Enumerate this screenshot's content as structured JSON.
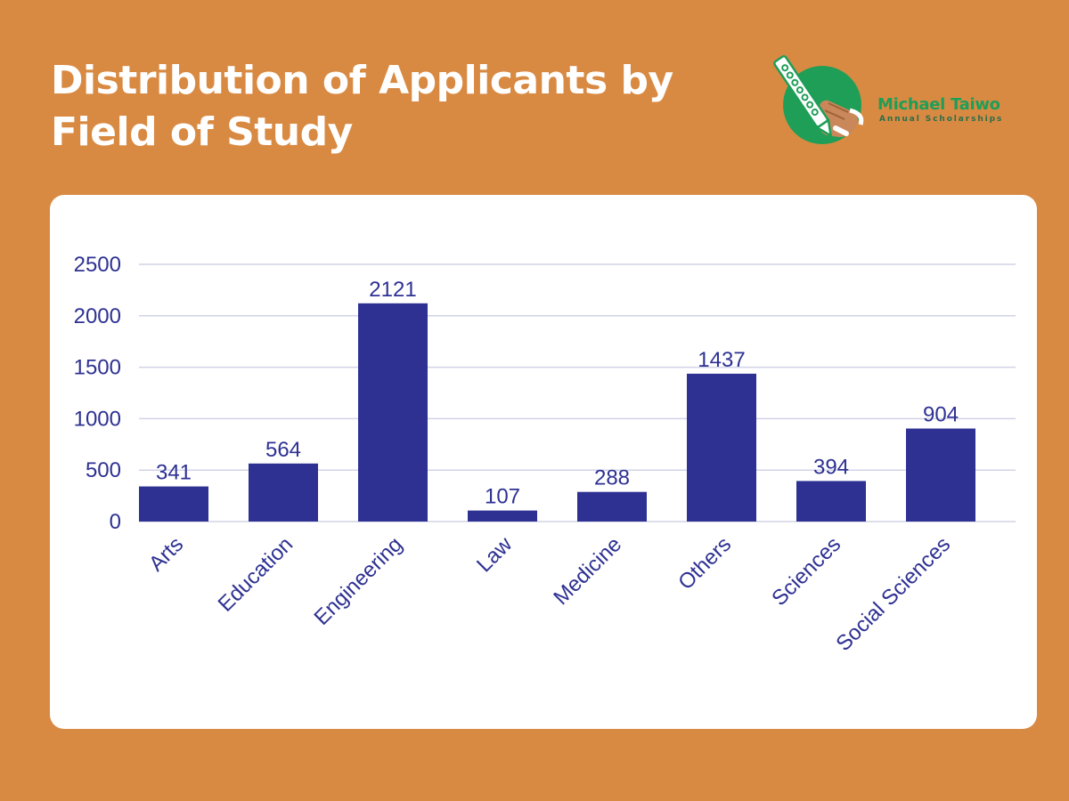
{
  "header": {
    "title_line1": "Distribution of Applicants by",
    "title_line2": "Field of Study"
  },
  "logo": {
    "name": "Michael Taiwo",
    "tagline": "Annual Scholarships",
    "icon": "pencil-hand-logo-icon"
  },
  "colors": {
    "background": "#D98A42",
    "card": "#FFFFFF",
    "bar": "#2E3192",
    "text": "#2E3192",
    "grid": "#D2D3E6",
    "logo_green": "#1E9E57"
  },
  "chart_data": {
    "type": "bar",
    "title": "Distribution of Applicants by Field of Study",
    "xlabel": "",
    "ylabel": "",
    "categories": [
      "Arts",
      "Education",
      "Engineering",
      "Law",
      "Medicine",
      "Others",
      "Sciences",
      "Social Sciences"
    ],
    "values": [
      341,
      564,
      2121,
      107,
      288,
      1437,
      394,
      904
    ],
    "data_labels": [
      "341",
      "564",
      "2121",
      "107",
      "288",
      "1437",
      "394",
      "904"
    ],
    "ylim": [
      0,
      2500
    ],
    "yticks": [
      0,
      500,
      1000,
      1500,
      2000,
      2500
    ],
    "ytick_labels": [
      "0",
      "500",
      "1000",
      "1500",
      "2000",
      "2500"
    ],
    "grid": true,
    "legend": "none"
  }
}
